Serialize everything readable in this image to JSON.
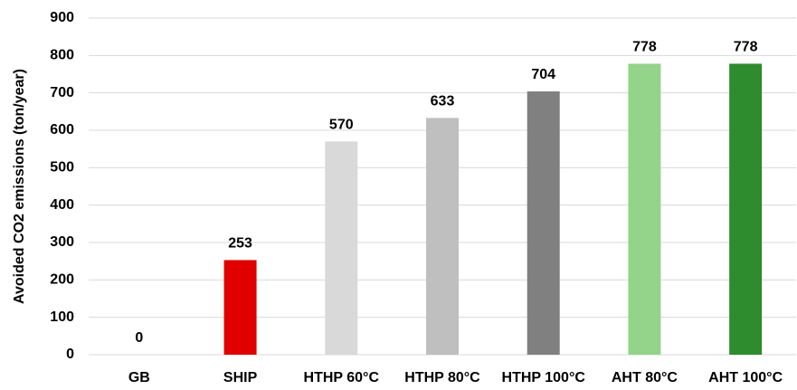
{
  "chart_data": {
    "type": "bar",
    "y_label": "Avoided CO2 emissions (ton/year)",
    "categories": [
      "GB",
      "SHIP",
      "HTHP 60°C",
      "HTHP 80°C",
      "HTHP 100°C",
      "AHT 80°C",
      "AHT 100°C"
    ],
    "values": [
      0,
      253,
      570,
      633,
      704,
      778,
      778
    ],
    "colors": [
      "#d9d9d9",
      "#e00000",
      "#d9d9d9",
      "#bfbfbf",
      "#808080",
      "#93d38a",
      "#2e8b2e"
    ],
    "ylim": [
      0,
      900
    ],
    "yticks": [
      0,
      100,
      200,
      300,
      400,
      500,
      600,
      700,
      800,
      900
    ],
    "grid": true
  }
}
